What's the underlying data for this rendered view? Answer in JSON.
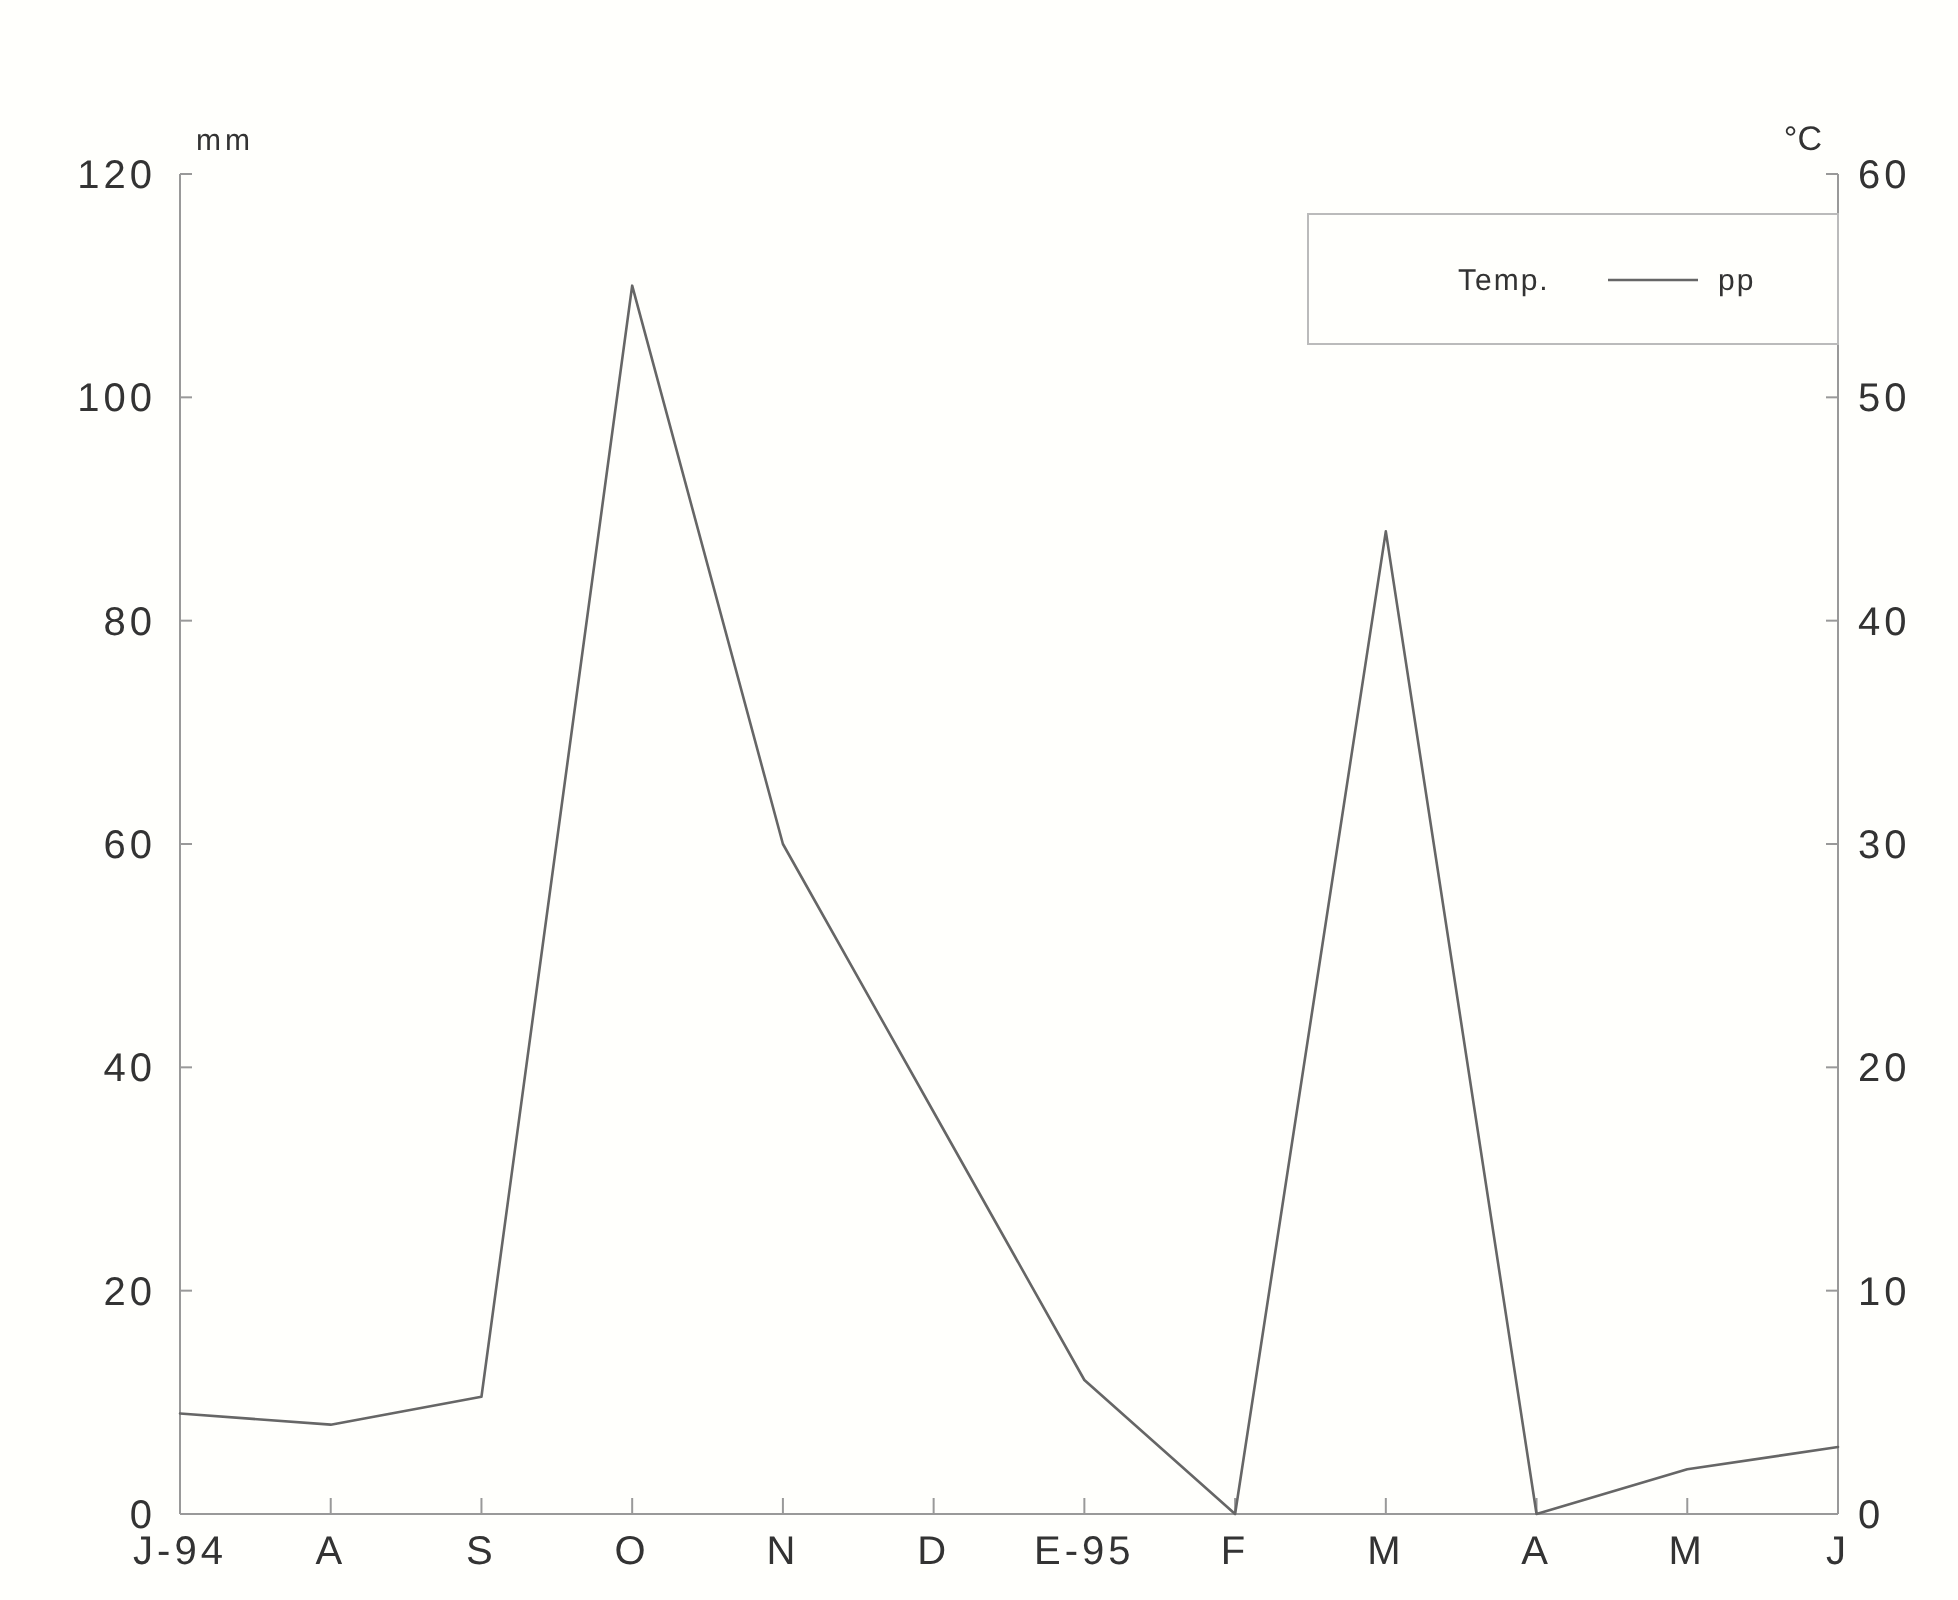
{
  "chart_data": {
    "type": "line",
    "categories": [
      "J-94",
      "A",
      "S",
      "O",
      "N",
      "D",
      "E-95",
      "F",
      "M",
      "A",
      "M",
      "J"
    ],
    "series": [
      {
        "name": "pp",
        "color": "#666666",
        "values": [
          9,
          8,
          10.5,
          110,
          60,
          36,
          12,
          0,
          88,
          0,
          4,
          6
        ]
      }
    ],
    "ylabel": "mm",
    "y2label": "°C",
    "legend_title": "Temp.",
    "ylim": [
      0,
      120
    ],
    "yticks": [
      0,
      20,
      40,
      60,
      80,
      100,
      120
    ],
    "y2lim": [
      0,
      60
    ],
    "y2ticks": [
      0,
      10,
      20,
      30,
      40,
      50,
      60
    ],
    "legend": "top right",
    "grid": false,
    "marker": "none",
    "line_style": "solid"
  }
}
